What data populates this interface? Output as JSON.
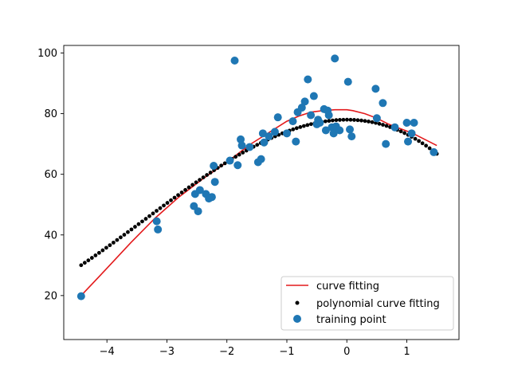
{
  "chart_data": {
    "type": "scatter",
    "title": "",
    "xlabel": "",
    "ylabel": "",
    "xlim": [
      -4.72,
      1.87
    ],
    "ylim": [
      5.5,
      102.5
    ],
    "x_ticks": [
      -4,
      -3,
      -2,
      -1,
      0,
      1
    ],
    "x_tick_labels": [
      "−4",
      "−3",
      "−2",
      "−1",
      "0",
      "1"
    ],
    "y_ticks": [
      20,
      40,
      60,
      80,
      100
    ],
    "y_tick_labels": [
      "20",
      "40",
      "60",
      "80",
      "100"
    ],
    "grid": false,
    "legend_position": "lower-right",
    "legend": [
      {
        "label": "curve fitting",
        "marker": "line",
        "color": "#e31a1c"
      },
      {
        "label": "polynomial curve fitting",
        "marker": "small-dot",
        "color": "#000000"
      },
      {
        "label": "training point",
        "marker": "circle",
        "color": "#1f77b4"
      }
    ],
    "series": [
      {
        "kind": "line",
        "color": "#e31a1c",
        "x": [
          -4.43,
          -4.0,
          -3.6,
          -3.2,
          -2.8,
          -2.4,
          -2.0,
          -1.8,
          -1.6,
          -1.4,
          -1.2,
          -1.0,
          -0.8,
          -0.6,
          -0.4,
          -0.2,
          0.0,
          0.1,
          0.3,
          0.5,
          0.7,
          0.9,
          1.1,
          1.3,
          1.5
        ],
        "y": [
          20.0,
          29.0,
          37.5,
          45.5,
          52.5,
          58.5,
          64.0,
          67.0,
          70.0,
          72.5,
          75.0,
          77.5,
          79.2,
          80.5,
          81.0,
          81.3,
          81.3,
          81.0,
          80.0,
          78.5,
          76.5,
          75.0,
          73.5,
          71.5,
          69.5
        ]
      },
      {
        "kind": "dots",
        "color": "#000000",
        "x_start": -4.43,
        "x_end": 1.5,
        "count": 100,
        "coefficients": [
          78.0,
          0.0,
          -4.35,
          -0.43
        ]
      },
      {
        "kind": "scatter",
        "color": "#1f77b4",
        "points": [
          [
            -4.43,
            19.8
          ],
          [
            -3.17,
            44.5
          ],
          [
            -3.15,
            41.8
          ],
          [
            -2.55,
            49.5
          ],
          [
            -2.53,
            53.5
          ],
          [
            -2.48,
            47.8
          ],
          [
            -2.45,
            54.8
          ],
          [
            -2.35,
            53.5
          ],
          [
            -2.3,
            52.0
          ],
          [
            -2.25,
            52.5
          ],
          [
            -2.22,
            62.8
          ],
          [
            -2.2,
            57.5
          ],
          [
            -1.95,
            64.5
          ],
          [
            -1.87,
            97.5
          ],
          [
            -1.82,
            63.0
          ],
          [
            -1.77,
            71.5
          ],
          [
            -1.75,
            69.5
          ],
          [
            -1.62,
            69.0
          ],
          [
            -1.48,
            64.0
          ],
          [
            -1.43,
            65.0
          ],
          [
            -1.4,
            73.5
          ],
          [
            -1.38,
            70.5
          ],
          [
            -1.3,
            72.5
          ],
          [
            -1.2,
            74.0
          ],
          [
            -1.15,
            78.8
          ],
          [
            -1.0,
            73.5
          ],
          [
            -0.9,
            77.5
          ],
          [
            -0.85,
            70.8
          ],
          [
            -0.82,
            80.5
          ],
          [
            -0.75,
            82.0
          ],
          [
            -0.7,
            84.0
          ],
          [
            -0.65,
            91.3
          ],
          [
            -0.6,
            79.5
          ],
          [
            -0.55,
            85.8
          ],
          [
            -0.5,
            76.5
          ],
          [
            -0.48,
            78.0
          ],
          [
            -0.45,
            77.0
          ],
          [
            -0.38,
            81.5
          ],
          [
            -0.35,
            74.5
          ],
          [
            -0.32,
            81.0
          ],
          [
            -0.3,
            79.5
          ],
          [
            -0.25,
            75.5
          ],
          [
            -0.22,
            73.5
          ],
          [
            -0.2,
            98.2
          ],
          [
            -0.18,
            75.8
          ],
          [
            -0.12,
            74.5
          ],
          [
            0.02,
            90.5
          ],
          [
            0.05,
            74.8
          ],
          [
            0.08,
            72.5
          ],
          [
            0.48,
            88.2
          ],
          [
            0.5,
            78.5
          ],
          [
            0.6,
            83.5
          ],
          [
            0.65,
            70.0
          ],
          [
            0.8,
            75.5
          ],
          [
            1.0,
            77.0
          ],
          [
            1.02,
            70.8
          ],
          [
            1.08,
            73.5
          ],
          [
            1.12,
            77.0
          ],
          [
            1.45,
            67.3
          ]
        ]
      }
    ]
  }
}
